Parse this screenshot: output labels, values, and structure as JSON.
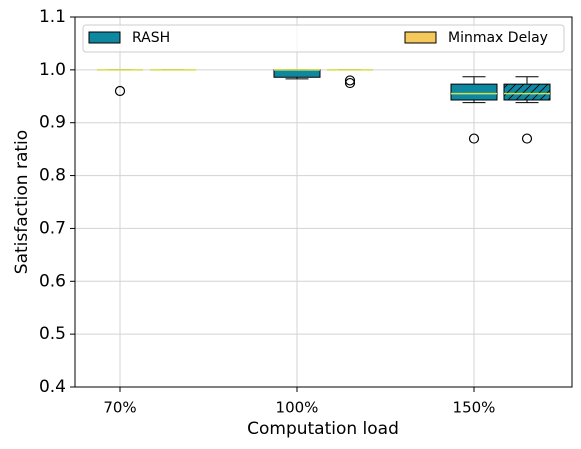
{
  "chart_data": {
    "type": "box",
    "x_label": "Computation load",
    "y_label": "Satisfaction ratio",
    "categories": [
      "70%",
      "100%",
      "150%"
    ],
    "ylim": [
      0.4,
      1.1
    ],
    "yticks": [
      0.4,
      0.5,
      0.6,
      0.7,
      0.8,
      0.9,
      {
        "value": 1,
        "label": "1.0"
      },
      1.1
    ],
    "grid": true,
    "legend": "upper",
    "median_color": "#d4e04a",
    "series": [
      {
        "name": "RASH",
        "color": "#0e87a0",
        "boxes": [
          {
            "whislo": 1,
            "q1": 1,
            "med": 1,
            "q3": 1,
            "whishi": 1,
            "fliers": [
              0.96
            ]
          },
          {
            "whislo": 0.983,
            "q1": 0.986,
            "med": 1,
            "q3": 1,
            "whishi": 1,
            "fliers": []
          },
          {
            "whislo": 0.938,
            "q1": 0.943,
            "med": 0.955,
            "q3": 0.973,
            "whishi": 0.987,
            "fliers": [
              0.87
            ]
          }
        ]
      },
      {
        "name": "Minmax Delay",
        "color": "#f5c85c",
        "box_colors": [
          "#f5c85c",
          "#f5c85c",
          "#0e87a0"
        ],
        "hatch": "/",
        "boxes": [
          {
            "whislo": 1,
            "q1": 1,
            "med": 1,
            "q3": 1,
            "whishi": 1,
            "fliers": []
          },
          {
            "whislo": 1,
            "q1": 1,
            "med": 1,
            "q3": 1,
            "whishi": 1,
            "fliers": [
              0.98,
              0.975
            ]
          },
          {
            "whislo": 0.938,
            "q1": 0.943,
            "med": 0.955,
            "q3": 0.973,
            "whishi": 0.987,
            "fliers": [
              0.87
            ]
          }
        ]
      }
    ]
  }
}
